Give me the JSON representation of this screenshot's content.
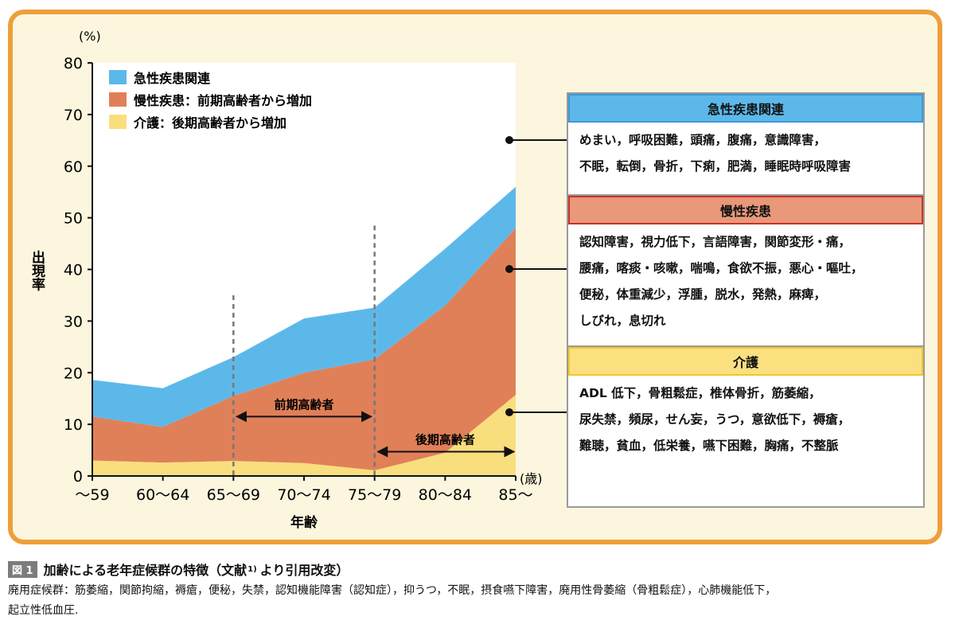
{
  "chart_data": {
    "type": "area",
    "stacked": true,
    "categories": [
      "～59",
      "60～64",
      "65～69",
      "70～74",
      "75～79",
      "80～84",
      "85～"
    ],
    "series": [
      {
        "name": "介護：後期高齢者から増加",
        "color": "#F9DE7E",
        "values": [
          3,
          2.6,
          2.9,
          2.5,
          1.1,
          4.5,
          15.7
        ]
      },
      {
        "name": "慢性疾患：前期高齢者から増加",
        "color": "#E08059",
        "values": [
          8.5,
          6.9,
          12.6,
          17.5,
          21.5,
          28.5,
          32.3
        ]
      },
      {
        "name": "急性疾患関連",
        "color": "#5DB8EA",
        "values": [
          7.1,
          7.5,
          7.5,
          10.5,
          10,
          11,
          8
        ]
      }
    ],
    "ylim": [
      0,
      80
    ],
    "yticks": [
      0,
      10,
      20,
      30,
      40,
      50,
      60,
      70,
      80
    ],
    "ylabel": "出現率",
    "yunit": "(%)",
    "xlabel": "年齢",
    "xunit": "(歳)",
    "legend_position": "top-left",
    "annotations": {
      "early_elderly": {
        "label": "前期高齢者",
        "from": "65～69",
        "to": "75～79"
      },
      "late_elderly": {
        "label": "後期高齢者",
        "from": "75～79",
        "to": "85～"
      }
    }
  },
  "boxes": [
    {
      "title": "急性疾患関連",
      "head_color": "#5DB8EA",
      "border_color": "#3A98DA",
      "lines": [
        "めまい，呼吸困難，頭痛，腹痛，意識障害，",
        "不眠，転倒，骨折，下痢，肥満，睡眠時呼吸障害"
      ]
    },
    {
      "title": "慢性疾患",
      "head_color": "#E9987A",
      "border_color": "#C8322A",
      "lines": [
        "認知障害，視力低下，言語障害，関節変形・痛，",
        "腰痛，喀痰・咳嗽，喘鳴，食欲不振，悪心・嘔吐，",
        "便秘，体重減少，浮腫，脱水，発熱，麻痺，",
        "しびれ，息切れ"
      ]
    },
    {
      "title": "介護",
      "head_color": "#FBE07F",
      "border_color": "#F2C431",
      "lines": [
        "ADL 低下，骨粗鬆症，椎体骨折，筋萎縮，",
        "尿失禁，頻尿，せん妄，うつ，意欲低下，褥瘡，",
        "難聴，貧血，低栄養，嚥下困難，胸痛，不整脈"
      ]
    }
  ],
  "caption": {
    "badge": "図 1",
    "title": "加齢による老年症候群の特徴（文献",
    "ref": "1)",
    "title_tail": "より引用改変）",
    "lines": [
      "廃用症候群：筋萎縮，関節拘縮，褥瘡，便秘，失禁，認知機能障害（認知症），抑うつ，不眠，摂食嚥下障害，廃用性骨萎縮（骨粗鬆症），心肺機能低下，",
      "起立性低血圧."
    ]
  }
}
